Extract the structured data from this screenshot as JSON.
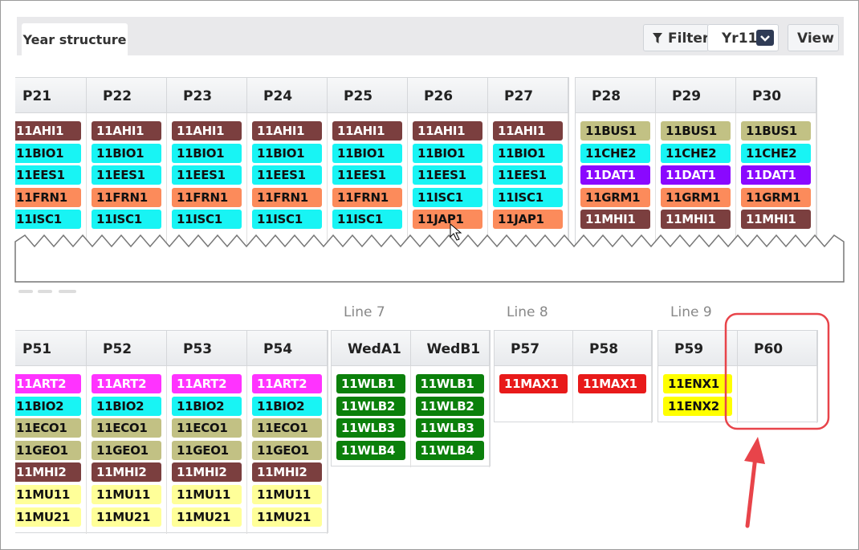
{
  "tabs": [
    "Year structure"
  ],
  "toolbar": {
    "filter": "Filter",
    "year": "Yr11",
    "view": "View"
  },
  "top_groups": [
    {
      "periods": [
        {
          "name": "P21",
          "classes": [
            {
              "code": "11AHI1",
              "color": "#7b3f3f"
            },
            {
              "code": "11BIO1",
              "color": "#18f4f4"
            },
            {
              "code": "11EES1",
              "color": "#18f4f4"
            },
            {
              "code": "11FRN1",
              "color": "#fc8b5b"
            },
            {
              "code": "11ISC1",
              "color": "#18f4f4"
            }
          ]
        },
        {
          "name": "P22",
          "classes": [
            {
              "code": "11AHI1",
              "color": "#7b3f3f"
            },
            {
              "code": "11BIO1",
              "color": "#18f4f4"
            },
            {
              "code": "11EES1",
              "color": "#18f4f4"
            },
            {
              "code": "11FRN1",
              "color": "#fc8b5b"
            },
            {
              "code": "11ISC1",
              "color": "#18f4f4"
            }
          ]
        },
        {
          "name": "P23",
          "classes": [
            {
              "code": "11AHI1",
              "color": "#7b3f3f"
            },
            {
              "code": "11BIO1",
              "color": "#18f4f4"
            },
            {
              "code": "11EES1",
              "color": "#18f4f4"
            },
            {
              "code": "11FRN1",
              "color": "#fc8b5b"
            },
            {
              "code": "11ISC1",
              "color": "#18f4f4"
            }
          ]
        },
        {
          "name": "P24",
          "classes": [
            {
              "code": "11AHI1",
              "color": "#7b3f3f"
            },
            {
              "code": "11BIO1",
              "color": "#18f4f4"
            },
            {
              "code": "11EES1",
              "color": "#18f4f4"
            },
            {
              "code": "11FRN1",
              "color": "#fc8b5b"
            },
            {
              "code": "11ISC1",
              "color": "#18f4f4"
            }
          ]
        },
        {
          "name": "P25",
          "classes": [
            {
              "code": "11AHI1",
              "color": "#7b3f3f"
            },
            {
              "code": "11BIO1",
              "color": "#18f4f4"
            },
            {
              "code": "11EES1",
              "color": "#18f4f4"
            },
            {
              "code": "11FRN1",
              "color": "#fc8b5b"
            },
            {
              "code": "11ISC1",
              "color": "#18f4f4"
            }
          ]
        },
        {
          "name": "P26",
          "classes": [
            {
              "code": "11AHI1",
              "color": "#7b3f3f"
            },
            {
              "code": "11BIO1",
              "color": "#18f4f4"
            },
            {
              "code": "11EES1",
              "color": "#18f4f4"
            },
            {
              "code": "11ISC1",
              "color": "#18f4f4"
            },
            {
              "code": "11JAP1",
              "color": "#fc8b5b"
            }
          ]
        },
        {
          "name": "P27",
          "classes": [
            {
              "code": "11AHI1",
              "color": "#7b3f3f"
            },
            {
              "code": "11BIO1",
              "color": "#18f4f4"
            },
            {
              "code": "11EES1",
              "color": "#18f4f4"
            },
            {
              "code": "11ISC1",
              "color": "#18f4f4"
            },
            {
              "code": "11JAP1",
              "color": "#fc8b5b"
            }
          ]
        }
      ]
    },
    {
      "periods": [
        {
          "name": "P28",
          "classes": [
            {
              "code": "11BUS1",
              "color": "#c2c184"
            },
            {
              "code": "11CHE2",
              "color": "#18f4f4"
            },
            {
              "code": "11DAT1",
              "color": "#8a08ff"
            },
            {
              "code": "11GRM1",
              "color": "#fc8b5b"
            },
            {
              "code": "11MHI1",
              "color": "#7b3f3f"
            }
          ]
        },
        {
          "name": "P29",
          "classes": [
            {
              "code": "11BUS1",
              "color": "#c2c184"
            },
            {
              "code": "11CHE2",
              "color": "#18f4f4"
            },
            {
              "code": "11DAT1",
              "color": "#8a08ff"
            },
            {
              "code": "11GRM1",
              "color": "#fc8b5b"
            },
            {
              "code": "11MHI1",
              "color": "#7b3f3f"
            }
          ]
        },
        {
          "name": "P30",
          "classes": [
            {
              "code": "11BUS1",
              "color": "#c2c184"
            },
            {
              "code": "11CHE2",
              "color": "#18f4f4"
            },
            {
              "code": "11DAT1",
              "color": "#8a08ff"
            },
            {
              "code": "11GRM1",
              "color": "#fc8b5b"
            },
            {
              "code": "11MHI1",
              "color": "#7b3f3f"
            }
          ]
        }
      ]
    }
  ],
  "bottom_groups": [
    {
      "periods": [
        {
          "name": "P51",
          "classes": [
            {
              "code": "11ART2",
              "color": "#ff33ff"
            },
            {
              "code": "11BIO2",
              "color": "#18f4f4"
            },
            {
              "code": "11ECO1",
              "color": "#c2c184"
            },
            {
              "code": "11GEO1",
              "color": "#c2c184"
            },
            {
              "code": "11MHI2",
              "color": "#7b3f3f"
            },
            {
              "code": "11MU11",
              "color": "#ffff99"
            },
            {
              "code": "11MU21",
              "color": "#ffff99"
            }
          ]
        },
        {
          "name": "P52",
          "classes": [
            {
              "code": "11ART2",
              "color": "#ff33ff"
            },
            {
              "code": "11BIO2",
              "color": "#18f4f4"
            },
            {
              "code": "11ECO1",
              "color": "#c2c184"
            },
            {
              "code": "11GEO1",
              "color": "#c2c184"
            },
            {
              "code": "11MHI2",
              "color": "#7b3f3f"
            },
            {
              "code": "11MU11",
              "color": "#ffff99"
            },
            {
              "code": "11MU21",
              "color": "#ffff99"
            }
          ]
        },
        {
          "name": "P53",
          "classes": [
            {
              "code": "11ART2",
              "color": "#ff33ff"
            },
            {
              "code": "11BIO2",
              "color": "#18f4f4"
            },
            {
              "code": "11ECO1",
              "color": "#c2c184"
            },
            {
              "code": "11GEO1",
              "color": "#c2c184"
            },
            {
              "code": "11MHI2",
              "color": "#7b3f3f"
            },
            {
              "code": "11MU11",
              "color": "#ffff99"
            },
            {
              "code": "11MU21",
              "color": "#ffff99"
            }
          ]
        },
        {
          "name": "P54",
          "classes": [
            {
              "code": "11ART2",
              "color": "#ff33ff"
            },
            {
              "code": "11BIO2",
              "color": "#18f4f4"
            },
            {
              "code": "11ECO1",
              "color": "#c2c184"
            },
            {
              "code": "11GEO1",
              "color": "#c2c184"
            },
            {
              "code": "11MHI2",
              "color": "#7b3f3f"
            },
            {
              "code": "11MU11",
              "color": "#ffff99"
            },
            {
              "code": "11MU21",
              "color": "#ffff99"
            }
          ]
        }
      ]
    },
    {
      "label": "Line 7",
      "periods": [
        {
          "name": "WedA1",
          "classes": [
            {
              "code": "11WLB1",
              "color": "#0b800b"
            },
            {
              "code": "11WLB2",
              "color": "#0b800b"
            },
            {
              "code": "11WLB3",
              "color": "#0b800b"
            },
            {
              "code": "11WLB4",
              "color": "#0b800b"
            }
          ]
        },
        {
          "name": "WedB1",
          "classes": [
            {
              "code": "11WLB1",
              "color": "#0b800b"
            },
            {
              "code": "11WLB2",
              "color": "#0b800b"
            },
            {
              "code": "11WLB3",
              "color": "#0b800b"
            },
            {
              "code": "11WLB4",
              "color": "#0b800b"
            }
          ]
        }
      ]
    },
    {
      "label": "Line 8",
      "periods": [
        {
          "name": "P57",
          "classes": [
            {
              "code": "11MAX1",
              "color": "#e81a1a"
            }
          ]
        },
        {
          "name": "P58",
          "classes": [
            {
              "code": "11MAX1",
              "color": "#e81a1a"
            }
          ]
        }
      ]
    },
    {
      "label": "Line 9",
      "periods": [
        {
          "name": "P59",
          "classes": [
            {
              "code": "11ENX1",
              "color": "#ffff00"
            },
            {
              "code": "11ENX2",
              "color": "#ffff00"
            }
          ]
        },
        {
          "name": "P60",
          "classes": []
        }
      ]
    }
  ]
}
